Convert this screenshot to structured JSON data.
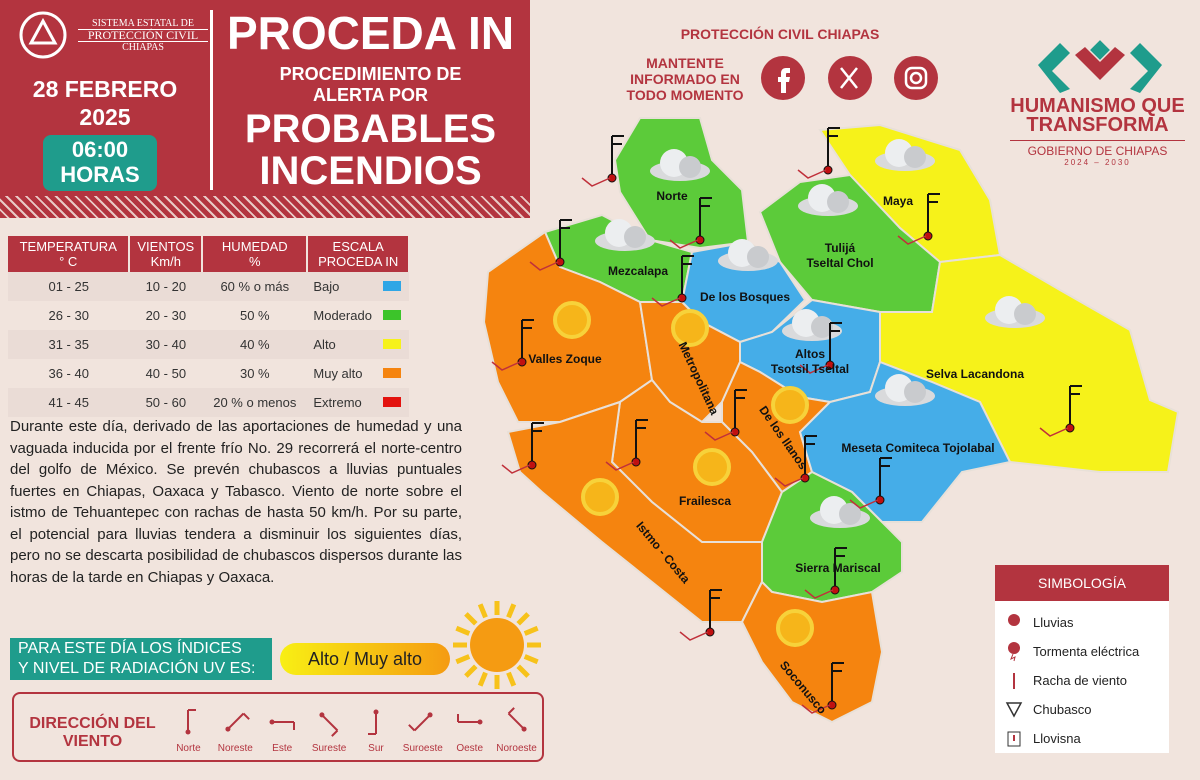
{
  "header": {
    "org": [
      "SISTEMA ESTATAL DE",
      "PROTECCIÓN CIVIL",
      "CHIAPAS"
    ],
    "date": "28 FEBRERO",
    "year": "2025",
    "time": "06:00",
    "time_unit": "HORAS",
    "title": "PROCEDA IN",
    "subtitle": [
      "PROCEDIMIENTO DE",
      "ALERTA POR"
    ],
    "headline": [
      "PROBABLES",
      "INCENDIOS"
    ]
  },
  "social": {
    "title": "PROTECCIÓN CIVIL CHIAPAS",
    "message": [
      "MANTENTE",
      "INFORMADO EN",
      "TODO MOMENTO"
    ]
  },
  "government": {
    "slogan": [
      "HUMANISMO QUE",
      "TRANSFORMA"
    ],
    "name": "GOBIERNO DE CHIAPAS",
    "period": "2024 – 2030"
  },
  "table": {
    "headers": [
      [
        "TEMPERATURA",
        "° C"
      ],
      [
        "VIENTOS",
        "Km/h"
      ],
      [
        "HUMEDAD",
        "%"
      ],
      [
        "ESCALA",
        "PROCEDA IN"
      ]
    ],
    "rows": [
      [
        "01 - 25",
        "10 - 20",
        "60 % o más",
        "Bajo"
      ],
      [
        "26 - 30",
        "20 - 30",
        "50 %",
        "Moderado"
      ],
      [
        "31 - 35",
        "30 - 40",
        "40 %",
        "Alto"
      ],
      [
        "36 - 40",
        "40 - 50",
        "30 %",
        "Muy alto"
      ],
      [
        "41 - 45",
        "50 - 60",
        "20 % o menos",
        "Extremo"
      ]
    ],
    "scale_colors": [
      "#2fa6e6",
      "#3cc42a",
      "#f6f21a",
      "#f5840f",
      "#e3130f"
    ]
  },
  "forecast": "Durante este día, derivado de las aportaciones de humedad y una vaguada inducida por el frente frío No. 29 recorrerá el norte-centro del golfo de México. Se prevén chubascos a lluvias puntuales fuertes en Chiapas, Oaxaca y Tabasco. Viento de norte sobre el istmo de Tehuantepec con rachas de hasta 50 km/h. Por su parte, el potencial para lluvias tendera a disminuir los siguientes días, pero no se descarta posibilidad de chubascos dispersos durante las horas de la tarde en Chiapas y Oaxaca.",
  "uv": {
    "label": [
      "PARA ESTE DÍA LOS ÍNDICES",
      "Y NIVEL DE RADIACIÓN UV ES:"
    ],
    "value": "Alto / Muy alto"
  },
  "wind_legend": {
    "title": [
      "DIRECCIÓN DEL",
      "VIENTO"
    ],
    "directions": [
      "Norte",
      "Noreste",
      "Este",
      "Sureste",
      "Sur",
      "Suroeste",
      "Oeste",
      "Noroeste"
    ]
  },
  "symbology": {
    "title": "SIMBOLOGÍA",
    "items": [
      "Lluvias",
      "Tormenta eléctrica",
      "Racha de viento",
      "Chubasco",
      "Llovisna"
    ]
  },
  "map": {
    "regions": [
      {
        "name": [
          "Norte"
        ],
        "color": "#5ccb3a"
      },
      {
        "name": [
          "Maya"
        ],
        "color": "#f6f21a"
      },
      {
        "name": [
          "Tulijá",
          "Tseltal Chol"
        ],
        "color": "#5ccb3a"
      },
      {
        "name": [
          "Mezcalapa"
        ],
        "color": "#5ccb3a"
      },
      {
        "name": [
          "De los Bosques"
        ],
        "color": "#45ade8"
      },
      {
        "name": [
          "Valles Zoque"
        ],
        "color": "#f5840f"
      },
      {
        "name": [
          "Metropolitana"
        ],
        "color": "#f5840f"
      },
      {
        "name": [
          "Altos",
          "Tsotsil Tseltal"
        ],
        "color": "#45ade8"
      },
      {
        "name": [
          "Selva Lacandona"
        ],
        "color": "#f6f21a"
      },
      {
        "name": [
          "De los llanos"
        ],
        "color": "#f5840f"
      },
      {
        "name": [
          "Meseta Comiteca Tojolabal"
        ],
        "color": "#45ade8"
      },
      {
        "name": [
          "Frailesca"
        ],
        "color": "#f5840f"
      },
      {
        "name": [
          "Istmo - Costa"
        ],
        "color": "#f5840f"
      },
      {
        "name": [
          "Sierra Mariscal"
        ],
        "color": "#5ccb3a"
      },
      {
        "name": [
          "Soconusco"
        ],
        "color": "#f5840f"
      }
    ]
  }
}
